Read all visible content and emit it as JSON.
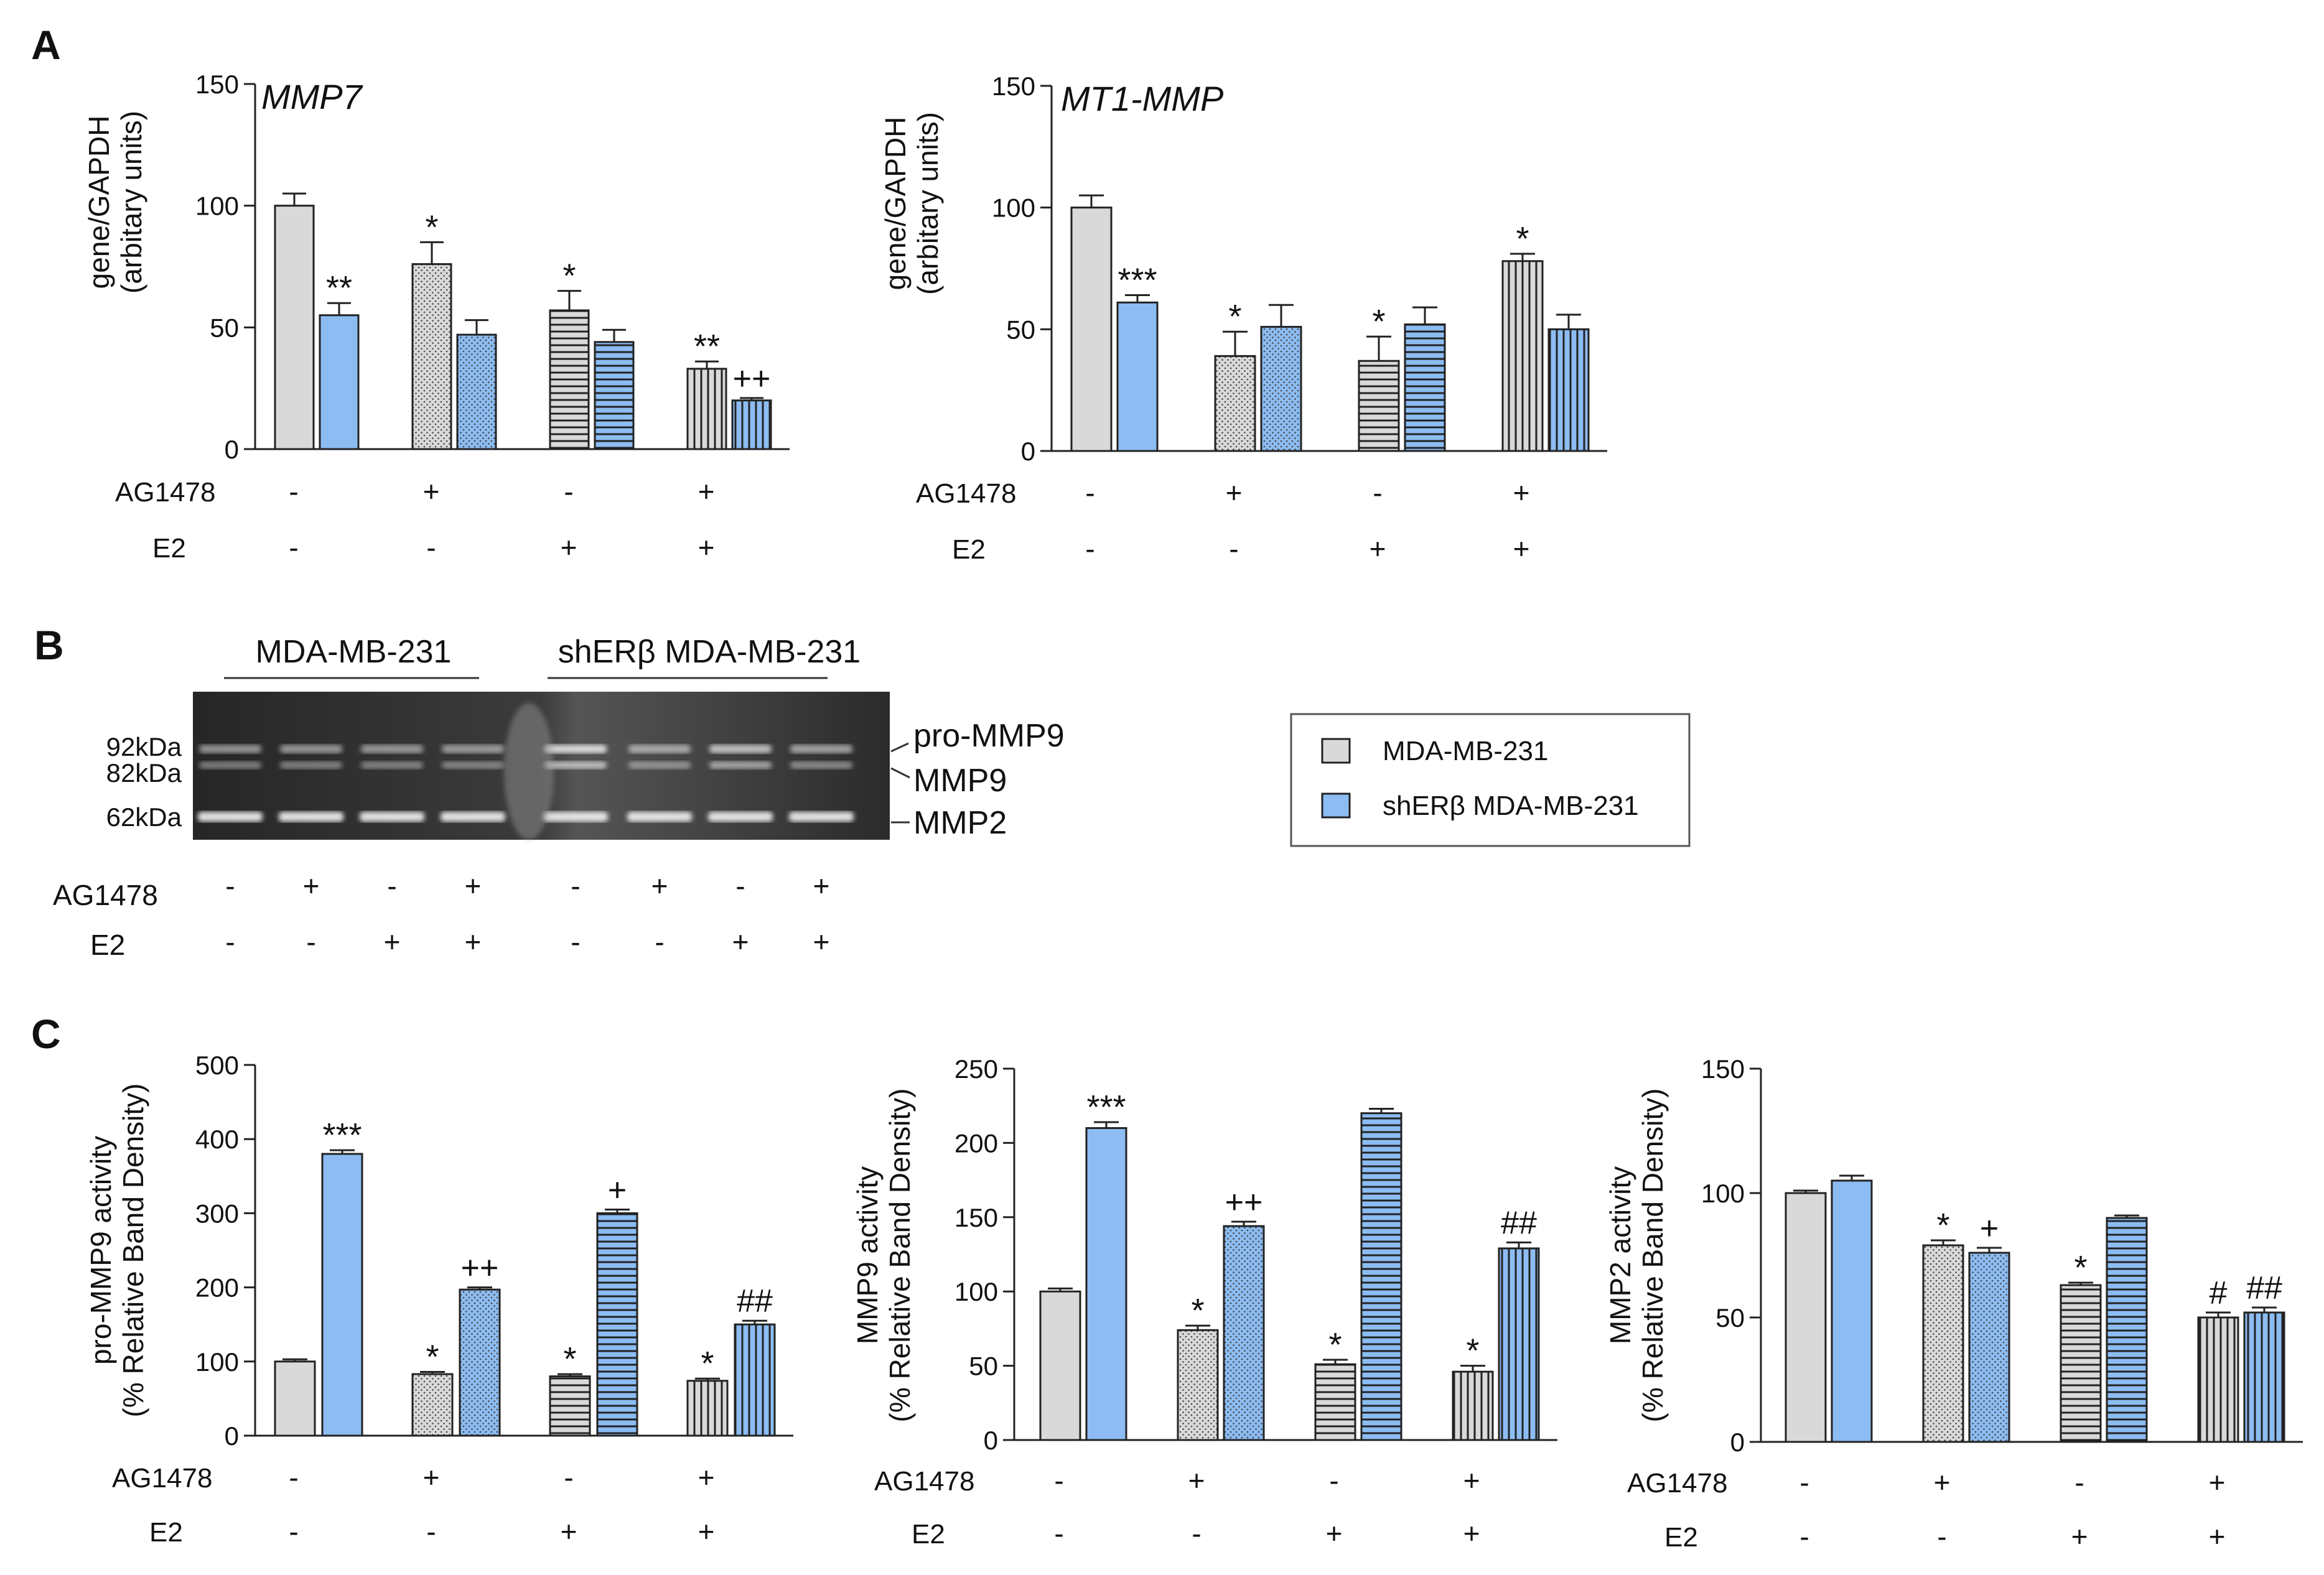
{
  "panel_letters": {
    "a": "A",
    "b": "B",
    "c": "C"
  },
  "colors": {
    "gray": "#d9d9d9",
    "blue": "#8cbcf2",
    "stroke": "#222222"
  },
  "treatment_labels": {
    "ag": "AG1478",
    "e2": "E2"
  },
  "conditions": {
    "ag": [
      "-",
      "+",
      "-",
      "+"
    ],
    "e2": [
      "-",
      "-",
      "+",
      "+"
    ]
  },
  "gel": {
    "group1_label": "MDA-MB-231",
    "group2_label": "shERβ MDA-MB-231",
    "markers": [
      "92kDa",
      "82kDa",
      "62kDa"
    ],
    "band_labels": [
      "pro-MMP9",
      "MMP9",
      "MMP2"
    ],
    "lanes_ag": [
      "-",
      "+",
      "-",
      "+",
      "-",
      "+",
      "-",
      "+"
    ],
    "lanes_e2": [
      "-",
      "-",
      "+",
      "+",
      "-",
      "-",
      "+",
      "+"
    ]
  },
  "legend": {
    "items": [
      "MDA-MB-231",
      "shERβ MDA-MB-231"
    ]
  },
  "chart_data": [
    {
      "id": "mmp7",
      "type": "bar",
      "title": "MMP7",
      "ylabel_line1": "gene/GAPDH",
      "ylabel_line2": "(arbitary units)",
      "ylim": [
        0,
        150
      ],
      "yticks": [
        "0",
        "50",
        "100",
        "150"
      ],
      "categories": [
        "AG1478 - / E2 -",
        "AG1478 + / E2 -",
        "AG1478 - / E2 +",
        "AG1478 + / E2 +"
      ],
      "series": [
        {
          "name": "MDA-MB-231",
          "values": [
            100,
            76,
            57,
            33
          ],
          "errors": [
            5,
            9,
            8,
            3
          ],
          "annotations": [
            "",
            "*",
            "*",
            "**"
          ]
        },
        {
          "name": "shERβ MDA-MB-231",
          "values": [
            55,
            47,
            44,
            20
          ],
          "errors": [
            5,
            6,
            5,
            1
          ],
          "annotations": [
            "**",
            "",
            "",
            "++"
          ]
        }
      ]
    },
    {
      "id": "mt1mmp",
      "type": "bar",
      "title": "MT1-MMP",
      "ylabel_line1": "gene/GAPDH",
      "ylabel_line2": "(arbitary units)",
      "ylim": [
        0,
        150
      ],
      "yticks": [
        "0",
        "50",
        "100",
        "150"
      ],
      "categories": [
        "AG1478 - / E2 -",
        "AG1478 + / E2 -",
        "AG1478 - / E2 +",
        "AG1478 + / E2 +"
      ],
      "series": [
        {
          "name": "MDA-MB-231",
          "values": [
            100,
            39,
            37,
            78
          ],
          "errors": [
            5,
            10,
            10,
            3
          ],
          "annotations": [
            "",
            "*",
            "*",
            "*"
          ]
        },
        {
          "name": "shERβ MDA-MB-231",
          "values": [
            61,
            51,
            52,
            50
          ],
          "errors": [
            3,
            9,
            7,
            6
          ],
          "annotations": [
            "***",
            "",
            "",
            ""
          ]
        }
      ]
    },
    {
      "id": "promm9",
      "type": "bar",
      "title": "",
      "ylabel_line1": "pro-MMP9 activity",
      "ylabel_line2": "(% Relative Band Density)",
      "ylim": [
        0,
        500
      ],
      "yticks": [
        "0",
        "100",
        "200",
        "300",
        "400",
        "500"
      ],
      "categories": [
        "AG1478 - / E2 -",
        "AG1478 + / E2 -",
        "AG1478 - / E2 +",
        "AG1478 + / E2 +"
      ],
      "series": [
        {
          "name": "MDA-MB-231",
          "values": [
            100,
            83,
            80,
            74
          ],
          "errors": [
            3,
            3,
            3,
            3
          ],
          "annotations": [
            "",
            "*",
            "*",
            "*"
          ]
        },
        {
          "name": "shERβ MDA-MB-231",
          "values": [
            380,
            197,
            300,
            150
          ],
          "errors": [
            5,
            3,
            5,
            5
          ],
          "annotations": [
            "***",
            "++",
            "+",
            "##"
          ]
        }
      ]
    },
    {
      "id": "mmp9",
      "type": "bar",
      "title": "",
      "ylabel_line1": "MMP9 activity",
      "ylabel_line2": "(% Relative Band Density)",
      "ylim": [
        0,
        250
      ],
      "yticks": [
        "0",
        "50",
        "100",
        "150",
        "200",
        "250"
      ],
      "categories": [
        "AG1478 - / E2 -",
        "AG1478 + / E2 -",
        "AG1478 - / E2 +",
        "AG1478 + / E2 +"
      ],
      "series": [
        {
          "name": "MDA-MB-231",
          "values": [
            100,
            74,
            51,
            46
          ],
          "errors": [
            2,
            3,
            3,
            4
          ],
          "annotations": [
            "",
            "*",
            "*",
            "*"
          ]
        },
        {
          "name": "shERβ MDA-MB-231",
          "values": [
            210,
            144,
            220,
            129
          ],
          "errors": [
            4,
            3,
            3,
            4
          ],
          "annotations": [
            "***",
            "++",
            "",
            "##"
          ]
        }
      ]
    },
    {
      "id": "mmp2",
      "type": "bar",
      "title": "",
      "ylabel_line1": "MMP2 activity",
      "ylabel_line2": "(% Relative Band Density)",
      "ylim": [
        0,
        150
      ],
      "yticks": [
        "0",
        "50",
        "100",
        "150"
      ],
      "categories": [
        "AG1478 - / E2 -",
        "AG1478 + / E2 -",
        "AG1478 - / E2 +",
        "AG1478 + / E2 +"
      ],
      "series": [
        {
          "name": "MDA-MB-231",
          "values": [
            100,
            79,
            63,
            50
          ],
          "errors": [
            1,
            2,
            1,
            2
          ],
          "annotations": [
            "",
            "*",
            "*",
            "#"
          ]
        },
        {
          "name": "shERβ MDA-MB-231",
          "values": [
            105,
            76,
            90,
            52
          ],
          "errors": [
            2,
            2,
            1,
            2
          ],
          "annotations": [
            "",
            "+",
            "",
            "##"
          ]
        }
      ]
    }
  ]
}
